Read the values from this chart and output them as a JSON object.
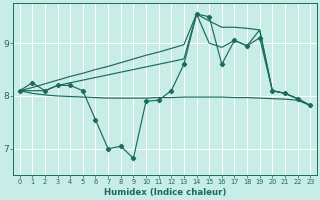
{
  "xlabel": "Humidex (Indice chaleur)",
  "x": [
    0,
    1,
    2,
    3,
    4,
    5,
    6,
    7,
    8,
    9,
    10,
    11,
    12,
    13,
    14,
    15,
    16,
    17,
    18,
    19,
    20,
    21,
    22,
    23
  ],
  "line_zigzag": [
    8.1,
    8.25,
    8.1,
    8.2,
    8.2,
    8.1,
    7.55,
    7.0,
    7.05,
    6.82,
    7.9,
    7.92,
    8.1,
    8.6,
    9.55,
    9.5,
    8.6,
    9.05,
    8.95,
    9.1,
    8.1,
    8.05,
    7.95,
    7.82
  ],
  "line_flat": [
    8.1,
    8.05,
    8.02,
    8.0,
    7.99,
    7.98,
    7.97,
    7.96,
    7.96,
    7.96,
    7.96,
    7.97,
    7.97,
    7.98,
    7.98,
    7.98,
    7.98,
    7.97,
    7.97,
    7.96,
    7.95,
    7.94,
    7.92,
    7.82
  ],
  "line_steep": [
    8.1,
    8.16,
    8.23,
    8.3,
    8.37,
    8.43,
    8.5,
    8.56,
    8.63,
    8.7,
    8.77,
    8.83,
    8.9,
    8.97,
    9.55,
    9.42,
    9.3,
    9.3,
    9.28,
    9.25,
    8.1,
    8.05,
    7.95,
    7.82
  ],
  "line_mid": [
    8.1,
    8.1,
    8.1,
    8.2,
    8.25,
    8.3,
    8.35,
    8.4,
    8.45,
    8.5,
    8.55,
    8.6,
    8.65,
    8.7,
    9.55,
    9.0,
    8.92,
    9.05,
    8.95,
    9.25,
    8.1,
    8.05,
    7.95,
    7.82
  ],
  "ylim": [
    6.5,
    9.75
  ],
  "yticks": [
    7,
    8,
    9
  ],
  "xticks": [
    0,
    1,
    2,
    3,
    4,
    5,
    6,
    7,
    8,
    9,
    10,
    11,
    12,
    13,
    14,
    15,
    16,
    17,
    18,
    19,
    20,
    21,
    22,
    23
  ],
  "bg_color": "#c8ece6",
  "line_color": "#1a6b5e",
  "grid_color": "#ffffff"
}
